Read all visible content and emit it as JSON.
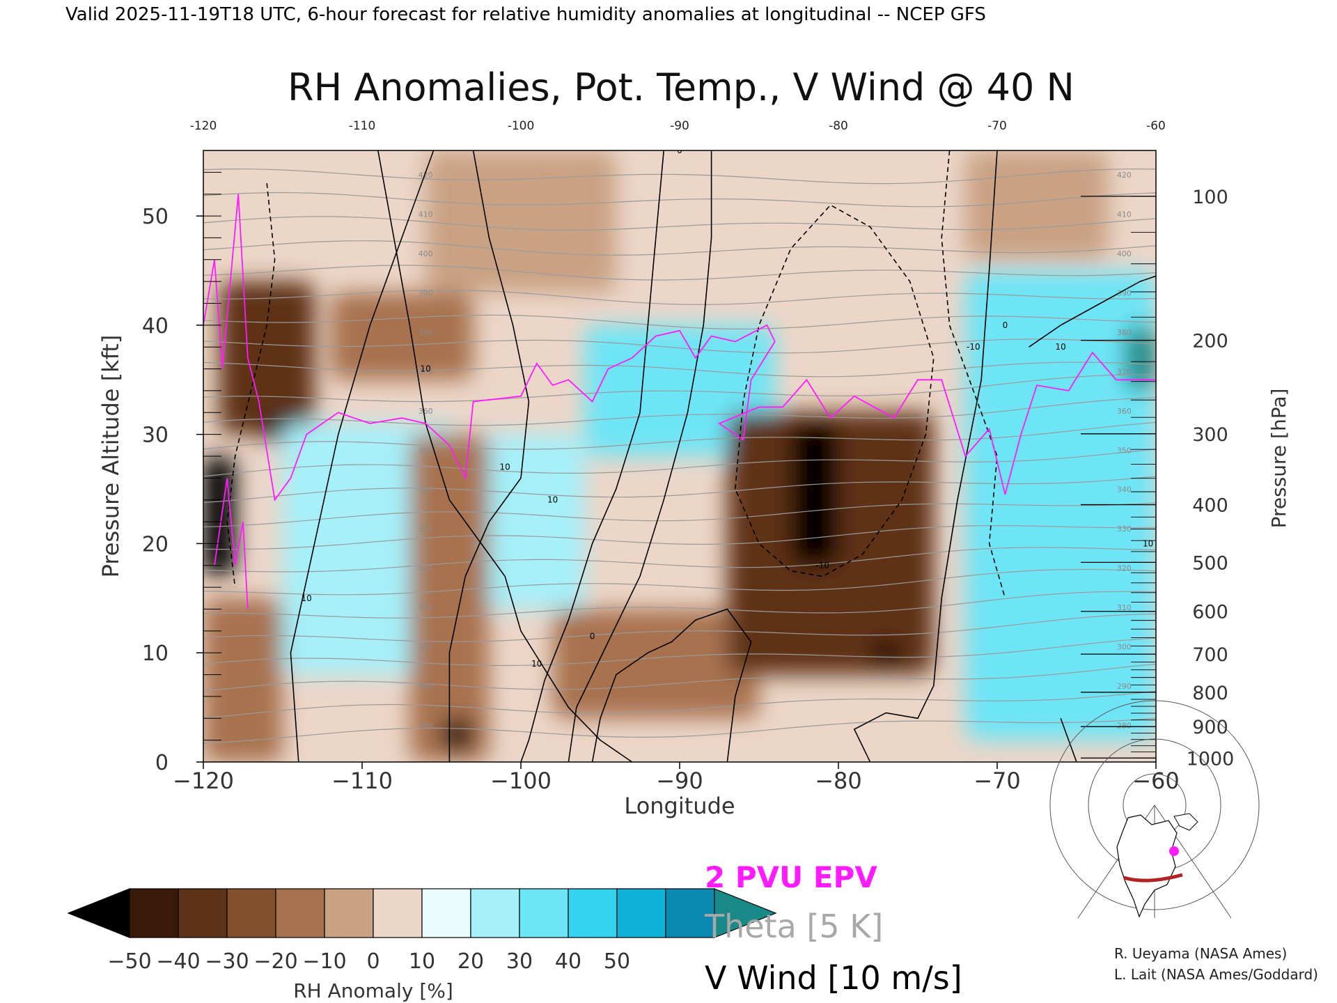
{
  "header": {
    "valid_line": "Valid 2025-11-19T18 UTC, 6-hour forecast for relative humidity anomalies at longitudinal -- NCEP GFS",
    "title": "RH Anomalies, Pot. Temp., V Wind @ 40 N"
  },
  "chart_data": {
    "type": "heatmap",
    "title": "RH Anomalies, Pot. Temp., V Wind @ 40 N",
    "xlabel": "Longitude",
    "ylabel_left": "Pressure Altitude [kft]",
    "ylabel_right": "Pressure [hPa]",
    "xlim": [
      -120,
      -60
    ],
    "ylim": [
      0,
      56
    ],
    "x_ticks": [
      -120,
      -110,
      -100,
      -90,
      -80,
      -70,
      -60
    ],
    "x_tick_labels": [
      "−120",
      "−110",
      "−100",
      "−90",
      "−80",
      "−70",
      "−60"
    ],
    "x_top_tick_labels": [
      "-120",
      "-110",
      "-100",
      "-90",
      "-80",
      "-70",
      "-60"
    ],
    "y_ticks": [
      0,
      10,
      20,
      30,
      40,
      50
    ],
    "y_tick_labels": [
      "0",
      "10",
      "20",
      "30",
      "40",
      "50"
    ],
    "pressure_ticks": [
      1000,
      900,
      800,
      700,
      600,
      500,
      400,
      300,
      200,
      100
    ],
    "pressure_tick_labels": [
      "1000",
      "900",
      "800",
      "700",
      "600",
      "500",
      "400",
      "300",
      "200",
      "100"
    ],
    "colorbar": {
      "label": "RH Anomaly [%]",
      "tick_values": [
        -50,
        -40,
        -30,
        -20,
        -10,
        0,
        10,
        20,
        30,
        40,
        50
      ],
      "tick_labels": [
        "−50",
        "−40",
        "−30",
        "−20",
        "−10",
        "0",
        "10",
        "20",
        "30",
        "40",
        "50"
      ],
      "colors": [
        "#000000",
        "#3a1a08",
        "#5e3218",
        "#84502e",
        "#a87250",
        "#c9a284",
        "#ecd6c8",
        "#e8fbfd",
        "#a6f0fa",
        "#6ee5f6",
        "#33d3ef",
        "#0fb2d8",
        "#0a8ab2",
        "#1a8a88"
      ]
    },
    "legend": [
      {
        "label": "2 PVU EPV",
        "color": "#ff1aff"
      },
      {
        "label": "Theta [5 K]",
        "color": "#a8a8a8"
      },
      {
        "label": "V Wind [10 m/s]",
        "color": "#000000"
      }
    ],
    "rh_anomaly_regions": [
      {
        "lon": [
          -106,
          -94
        ],
        "kft": [
          43,
          56
        ],
        "value": -5
      },
      {
        "lon": [
          -112,
          -103
        ],
        "kft": [
          35,
          43
        ],
        "value": -20
      },
      {
        "lon": [
          -119,
          -113
        ],
        "kft": [
          30,
          44
        ],
        "value": -35
      },
      {
        "lon": [
          -116,
          -115
        ],
        "kft": [
          29,
          32
        ],
        "value": -50
      },
      {
        "lon": [
          -120,
          -118
        ],
        "kft": [
          17,
          28
        ],
        "value": -50
      },
      {
        "lon": [
          -115,
          -104
        ],
        "kft": [
          8,
          31
        ],
        "value": 25
      },
      {
        "lon": [
          -103,
          -96
        ],
        "kft": [
          14,
          30
        ],
        "value": 20
      },
      {
        "lon": [
          -96,
          -84
        ],
        "kft": [
          28,
          40
        ],
        "value": 35
      },
      {
        "lon": [
          -120,
          -115
        ],
        "kft": [
          0,
          15
        ],
        "value": -20
      },
      {
        "lon": [
          -107,
          -102
        ],
        "kft": [
          0,
          30
        ],
        "value": -20
      },
      {
        "lon": [
          -105,
          -103
        ],
        "kft": [
          1,
          4
        ],
        "value": -50
      },
      {
        "lon": [
          -98,
          -85
        ],
        "kft": [
          4,
          14
        ],
        "value": -15
      },
      {
        "lon": [
          -87,
          -74
        ],
        "kft": [
          8,
          32
        ],
        "value": -35
      },
      {
        "lon": [
          -83,
          -80
        ],
        "kft": [
          18,
          31
        ],
        "value": -50
      },
      {
        "lon": [
          -78,
          -76
        ],
        "kft": [
          9,
          11
        ],
        "value": -50
      },
      {
        "lon": [
          -72,
          -60
        ],
        "kft": [
          2,
          45
        ],
        "value": 35
      },
      {
        "lon": [
          -62,
          -60
        ],
        "kft": [
          34,
          40
        ],
        "value": 50
      },
      {
        "lon": [
          -72,
          -63
        ],
        "kft": [
          46,
          56
        ],
        "value": -5
      }
    ],
    "theta_contour_labels": [
      "420",
      "410",
      "400",
      "390",
      "380",
      "370",
      "360",
      "350",
      "340",
      "330",
      "320",
      "310",
      "300",
      "290",
      "280"
    ],
    "v_wind_contour_labels": [
      "0",
      "10",
      "-10"
    ]
  },
  "map": {
    "section_color": "#b22222",
    "marker_color": "#ff1aff"
  },
  "credits": {
    "line1": "R. Ueyama (NASA Ames)",
    "line2": "L. Lait (NASA Ames/Goddard)"
  }
}
